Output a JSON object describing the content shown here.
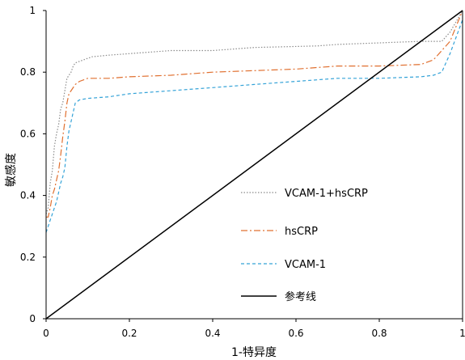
{
  "chart_data": {
    "type": "line",
    "title": "",
    "xlabel": "1-特异度",
    "ylabel": "敏感度",
    "xlim": [
      0,
      1
    ],
    "ylim": [
      0,
      1
    ],
    "x_ticks": [
      "0",
      "0.2",
      "0.4",
      "0.6",
      "0.8",
      "1"
    ],
    "y_ticks": [
      "0",
      "0.2",
      "0.4",
      "0.6",
      "0.8",
      "1"
    ],
    "grid": false,
    "legend_position": "right",
    "series": [
      {
        "name": "VCAM-1+hsCRP",
        "color": "#8c8c8c",
        "line_style": "dotted",
        "points": [
          [
            0,
            0.34
          ],
          [
            0.005,
            0.36
          ],
          [
            0.01,
            0.44
          ],
          [
            0.015,
            0.48
          ],
          [
            0.02,
            0.56
          ],
          [
            0.025,
            0.6
          ],
          [
            0.03,
            0.63
          ],
          [
            0.035,
            0.68
          ],
          [
            0.04,
            0.7
          ],
          [
            0.045,
            0.74
          ],
          [
            0.05,
            0.78
          ],
          [
            0.055,
            0.79
          ],
          [
            0.06,
            0.8
          ],
          [
            0.065,
            0.82
          ],
          [
            0.07,
            0.83
          ],
          [
            0.09,
            0.84
          ],
          [
            0.11,
            0.85
          ],
          [
            0.15,
            0.855
          ],
          [
            0.2,
            0.86
          ],
          [
            0.3,
            0.87
          ],
          [
            0.4,
            0.87
          ],
          [
            0.5,
            0.88
          ],
          [
            0.65,
            0.885
          ],
          [
            0.7,
            0.89
          ],
          [
            0.8,
            0.895
          ],
          [
            0.9,
            0.9
          ],
          [
            0.95,
            0.9
          ],
          [
            0.97,
            0.93
          ],
          [
            1.0,
            1.0
          ]
        ]
      },
      {
        "name": "hsCRP",
        "color": "#e07030",
        "line_style": "dashdot",
        "points": [
          [
            0,
            0.33
          ],
          [
            0.005,
            0.33
          ],
          [
            0.01,
            0.36
          ],
          [
            0.015,
            0.4
          ],
          [
            0.02,
            0.42
          ],
          [
            0.025,
            0.45
          ],
          [
            0.03,
            0.48
          ],
          [
            0.035,
            0.53
          ],
          [
            0.04,
            0.59
          ],
          [
            0.045,
            0.64
          ],
          [
            0.05,
            0.7
          ],
          [
            0.055,
            0.73
          ],
          [
            0.06,
            0.74
          ],
          [
            0.07,
            0.76
          ],
          [
            0.08,
            0.77
          ],
          [
            0.1,
            0.78
          ],
          [
            0.15,
            0.78
          ],
          [
            0.2,
            0.785
          ],
          [
            0.3,
            0.79
          ],
          [
            0.4,
            0.8
          ],
          [
            0.5,
            0.805
          ],
          [
            0.6,
            0.81
          ],
          [
            0.7,
            0.82
          ],
          [
            0.8,
            0.82
          ],
          [
            0.9,
            0.825
          ],
          [
            0.93,
            0.84
          ],
          [
            0.95,
            0.87
          ],
          [
            0.97,
            0.9
          ],
          [
            1.0,
            1.0
          ]
        ]
      },
      {
        "name": "VCAM-1",
        "color": "#35a3d8",
        "line_style": "dashed",
        "points": [
          [
            0,
            0.28
          ],
          [
            0.005,
            0.3
          ],
          [
            0.01,
            0.32
          ],
          [
            0.015,
            0.34
          ],
          [
            0.02,
            0.36
          ],
          [
            0.025,
            0.38
          ],
          [
            0.03,
            0.41
          ],
          [
            0.035,
            0.44
          ],
          [
            0.04,
            0.46
          ],
          [
            0.045,
            0.49
          ],
          [
            0.05,
            0.56
          ],
          [
            0.055,
            0.61
          ],
          [
            0.06,
            0.64
          ],
          [
            0.065,
            0.67
          ],
          [
            0.07,
            0.7
          ],
          [
            0.08,
            0.71
          ],
          [
            0.1,
            0.715
          ],
          [
            0.15,
            0.72
          ],
          [
            0.2,
            0.73
          ],
          [
            0.3,
            0.74
          ],
          [
            0.4,
            0.75
          ],
          [
            0.5,
            0.76
          ],
          [
            0.6,
            0.77
          ],
          [
            0.7,
            0.78
          ],
          [
            0.8,
            0.78
          ],
          [
            0.9,
            0.785
          ],
          [
            0.93,
            0.79
          ],
          [
            0.95,
            0.8
          ],
          [
            0.97,
            0.86
          ],
          [
            1.0,
            0.97
          ]
        ]
      },
      {
        "name": "参考线",
        "color": "#000000",
        "line_style": "solid",
        "points": [
          [
            0,
            0
          ],
          [
            1,
            1
          ]
        ]
      }
    ]
  }
}
